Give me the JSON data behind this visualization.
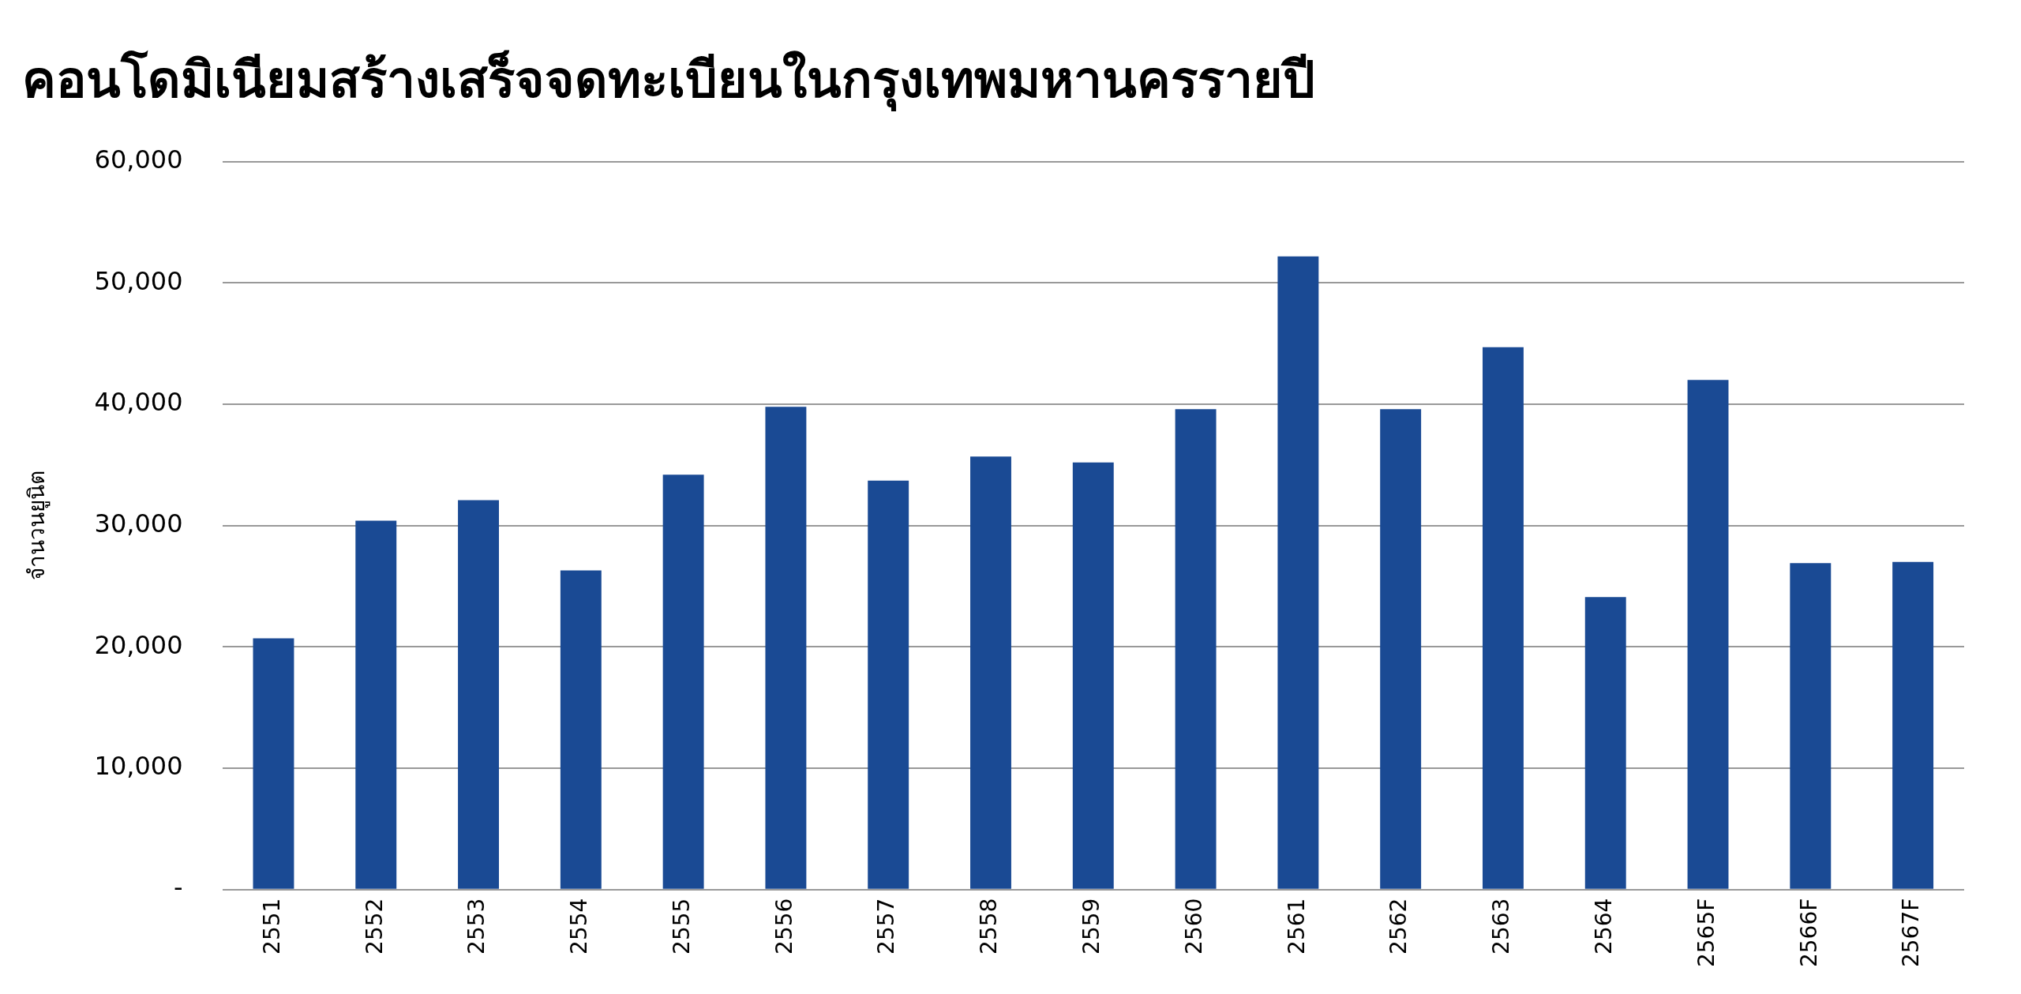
{
  "chart_data": {
    "type": "bar",
    "title": "คอนโดมิเนียมสร้างเสร็จจดทะเบียนในกรุงเทพมหานครรายปี",
    "ylabel": "จำนวนยูนิต",
    "categories": [
      "2551",
      "2552",
      "2553",
      "2554",
      "2555",
      "2556",
      "2557",
      "2558",
      "2559",
      "2560",
      "2561",
      "2562",
      "2563",
      "2564",
      "2565F",
      "2566F",
      "2567F"
    ],
    "values": [
      20700,
      30400,
      32100,
      26300,
      34200,
      39800,
      33700,
      35700,
      35200,
      39600,
      52200,
      39600,
      44700,
      24100,
      42000,
      26900,
      27000
    ],
    "color": "#1a4a94",
    "ylim": [
      0,
      60000
    ],
    "yticks": [
      {
        "value": 0,
        "label": "-"
      },
      {
        "value": 10000,
        "label": "10,000"
      },
      {
        "value": 20000,
        "label": "20,000"
      },
      {
        "value": 30000,
        "label": "30,000"
      },
      {
        "value": 40000,
        "label": "40,000"
      },
      {
        "value": 50000,
        "label": "50,000"
      },
      {
        "value": 60000,
        "label": "60,000"
      }
    ],
    "grid": "y",
    "legend": false
  }
}
